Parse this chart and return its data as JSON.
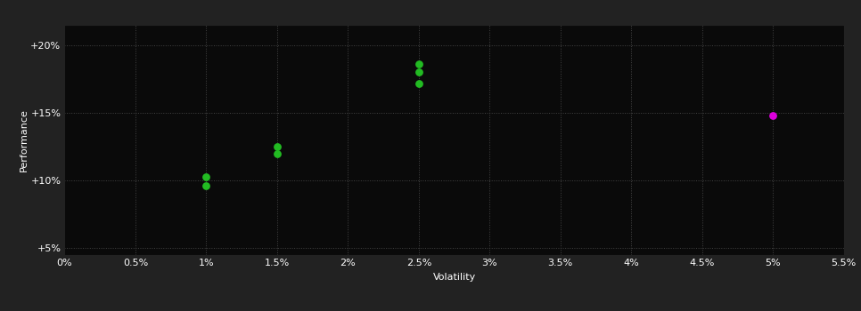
{
  "background_color": "#222222",
  "plot_bg_color": "#0a0a0a",
  "grid_color": "#444444",
  "text_color": "#ffffff",
  "green_points": [
    [
      0.01,
      10.3
    ],
    [
      0.01,
      9.6
    ],
    [
      0.015,
      12.5
    ],
    [
      0.015,
      12.0
    ],
    [
      0.025,
      18.6
    ],
    [
      0.025,
      18.0
    ],
    [
      0.025,
      17.2
    ]
  ],
  "magenta_points": [
    [
      0.05,
      14.8
    ]
  ],
  "green_color": "#22bb22",
  "magenta_color": "#dd00dd",
  "xlabel": "Volatility",
  "ylabel": "Performance",
  "xlim": [
    0.0,
    0.055
  ],
  "ylim": [
    4.5,
    21.5
  ],
  "xtick_values": [
    0.0,
    0.005,
    0.01,
    0.015,
    0.02,
    0.025,
    0.03,
    0.035,
    0.04,
    0.045,
    0.05,
    0.055
  ],
  "xtick_labels": [
    "0%",
    "0.5%",
    "1%",
    "1.5%",
    "2%",
    "2.5%",
    "3%",
    "3.5%",
    "4%",
    "4.5%",
    "5%",
    "5.5%"
  ],
  "ytick_values": [
    5,
    10,
    15,
    20
  ],
  "ytick_labels": [
    "+5%",
    "+10%",
    "+15%",
    "+20%"
  ],
  "marker_size": 40,
  "axis_fontsize": 8,
  "tick_fontsize": 8
}
